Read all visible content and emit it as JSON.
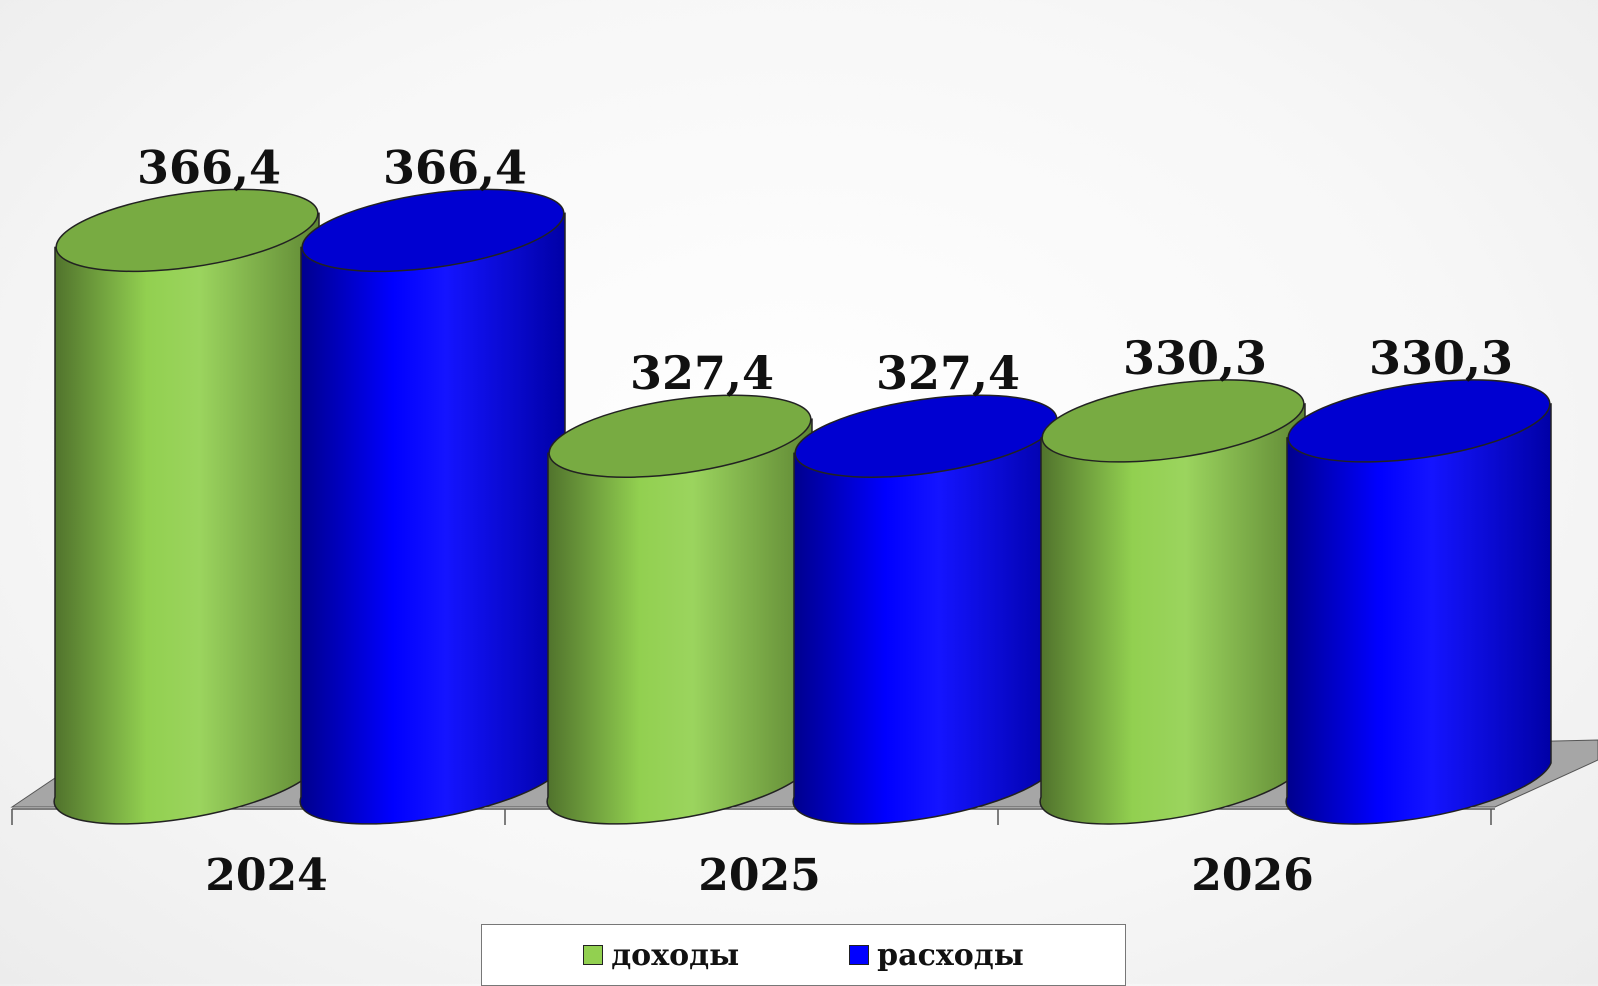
{
  "chart_data": {
    "type": "bar",
    "style": "3d-cylinder",
    "categories": [
      "2024",
      "2025",
      "2026"
    ],
    "series": [
      {
        "name": "доходы",
        "values": [
          366.4,
          327.4,
          330.3
        ],
        "color": "#92d050",
        "labels": [
          "366,4",
          "327,4",
          "330,3"
        ]
      },
      {
        "name": "расходы",
        "values": [
          366.4,
          327.4,
          330.3
        ],
        "color": "#0000ff",
        "labels": [
          "366,4",
          "327,4",
          "330,3"
        ]
      }
    ],
    "title": "",
    "xlabel": "",
    "ylabel": "",
    "legend_position": "bottom",
    "grid": false
  }
}
